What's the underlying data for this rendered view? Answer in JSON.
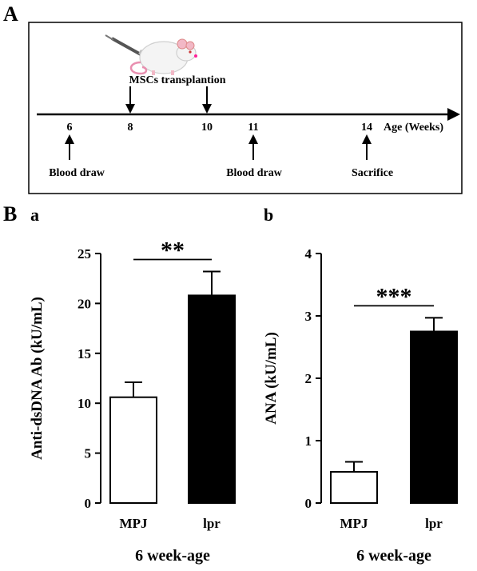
{
  "panel_a": {
    "label": "A",
    "axis_label": "Age (Weeks)",
    "timepoints": [
      {
        "week": "6",
        "below": "Blood draw"
      },
      {
        "week": "8",
        "above": ""
      },
      {
        "week": "10",
        "above": ""
      },
      {
        "week": "11",
        "below": "Blood draw"
      },
      {
        "week": "14",
        "below": "Sacrifice"
      }
    ],
    "transplant_label": "MSCs transplantion",
    "illustration": "mouse-with-syringe-icon"
  },
  "panel_b": {
    "label": "B"
  },
  "chart_data": [
    {
      "type": "bar",
      "panel": "a",
      "ylabel": "Anti-dsDNA Ab (kU/mL)",
      "xlabel": "6 week-age",
      "categories": [
        "MPJ",
        "lpr"
      ],
      "values": [
        10.6,
        20.8
      ],
      "errors": [
        1.5,
        2.4
      ],
      "bar_colors": [
        "#ffffff",
        "#000000"
      ],
      "ylim": [
        0,
        25
      ],
      "yticks": [
        "0",
        "5",
        "10",
        "15",
        "20",
        "25"
      ],
      "significance": "**"
    },
    {
      "type": "bar",
      "panel": "b",
      "ylabel": "ANA (kU/mL)",
      "xlabel": "6 week-age",
      "categories": [
        "MPJ",
        "lpr"
      ],
      "values": [
        0.5,
        2.75
      ],
      "errors": [
        0.16,
        0.22
      ],
      "bar_colors": [
        "#ffffff",
        "#000000"
      ],
      "ylim": [
        0,
        4
      ],
      "yticks": [
        "0",
        "1",
        "2",
        "3",
        "4"
      ],
      "significance": "***"
    }
  ]
}
